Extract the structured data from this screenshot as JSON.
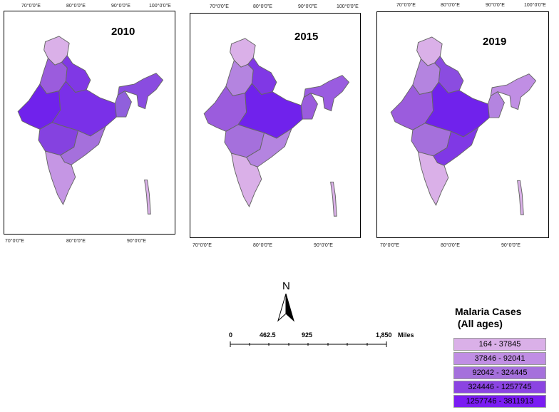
{
  "maps": [
    {
      "year": "2010",
      "top_ticks": [
        "70°0'0\"E",
        "80°0'0\"E",
        "90°0'0\"E",
        "100°0'0\"E"
      ],
      "bottom_ticks": [
        "70°0'0\"E",
        "80°0'0\"E",
        "90°0'0\"E"
      ],
      "fills": [
        "#dab0e8",
        "#9b5cdd",
        "#8038e5",
        "#7022ec",
        "#7a30e8",
        "#8542e0",
        "#a570dc",
        "#c596e4",
        "#9060dc",
        "#8a4ce0"
      ]
    },
    {
      "year": "2015",
      "top_ticks": [
        "70°0'0\"E",
        "80°0'0\"E",
        "90°0'0\"E",
        "100°0'0\"E"
      ],
      "bottom_ticks": [
        "70°0'0\"E",
        "80°0'0\"E",
        "90°0'0\"E"
      ],
      "fills": [
        "#dab0e8",
        "#b484e0",
        "#8038e5",
        "#9b5cdd",
        "#7022ec",
        "#a570dc",
        "#b484e0",
        "#dab0e8",
        "#9b5cdd",
        "#9a5ce0"
      ]
    },
    {
      "year": "2019",
      "top_ticks": [
        "70°0'0\"E",
        "80°0'0\"E",
        "90°0'0\"E",
        "100°0'0\"E"
      ],
      "bottom_ticks": [
        "70°0'0\"E",
        "80°0'0\"E",
        "90°0'0\"E"
      ],
      "fills": [
        "#dab0e8",
        "#b484e0",
        "#8b4ce0",
        "#9b5cdd",
        "#7022ec",
        "#a570dc",
        "#8038e5",
        "#dab0e8",
        "#b484e0",
        "#c08ee4"
      ]
    }
  ],
  "north_arrow": "N",
  "scale_bar": {
    "labels": [
      "0",
      "462.5",
      "925",
      "1,850"
    ],
    "unit": "Miles"
  },
  "legend": {
    "title": "Malaria Cases\n (All ages)",
    "items": [
      {
        "label": "164 - 37845",
        "color": "#dab0e8"
      },
      {
        "label": "37846 - 92041",
        "color": "#c08ee4"
      },
      {
        "label": "92042 - 324445",
        "color": "#a570dc"
      },
      {
        "label": "324446 - 1257745",
        "color": "#8b44e2"
      },
      {
        "label": "1257746 - 3811913",
        "color": "#7a1cf2"
      }
    ]
  }
}
